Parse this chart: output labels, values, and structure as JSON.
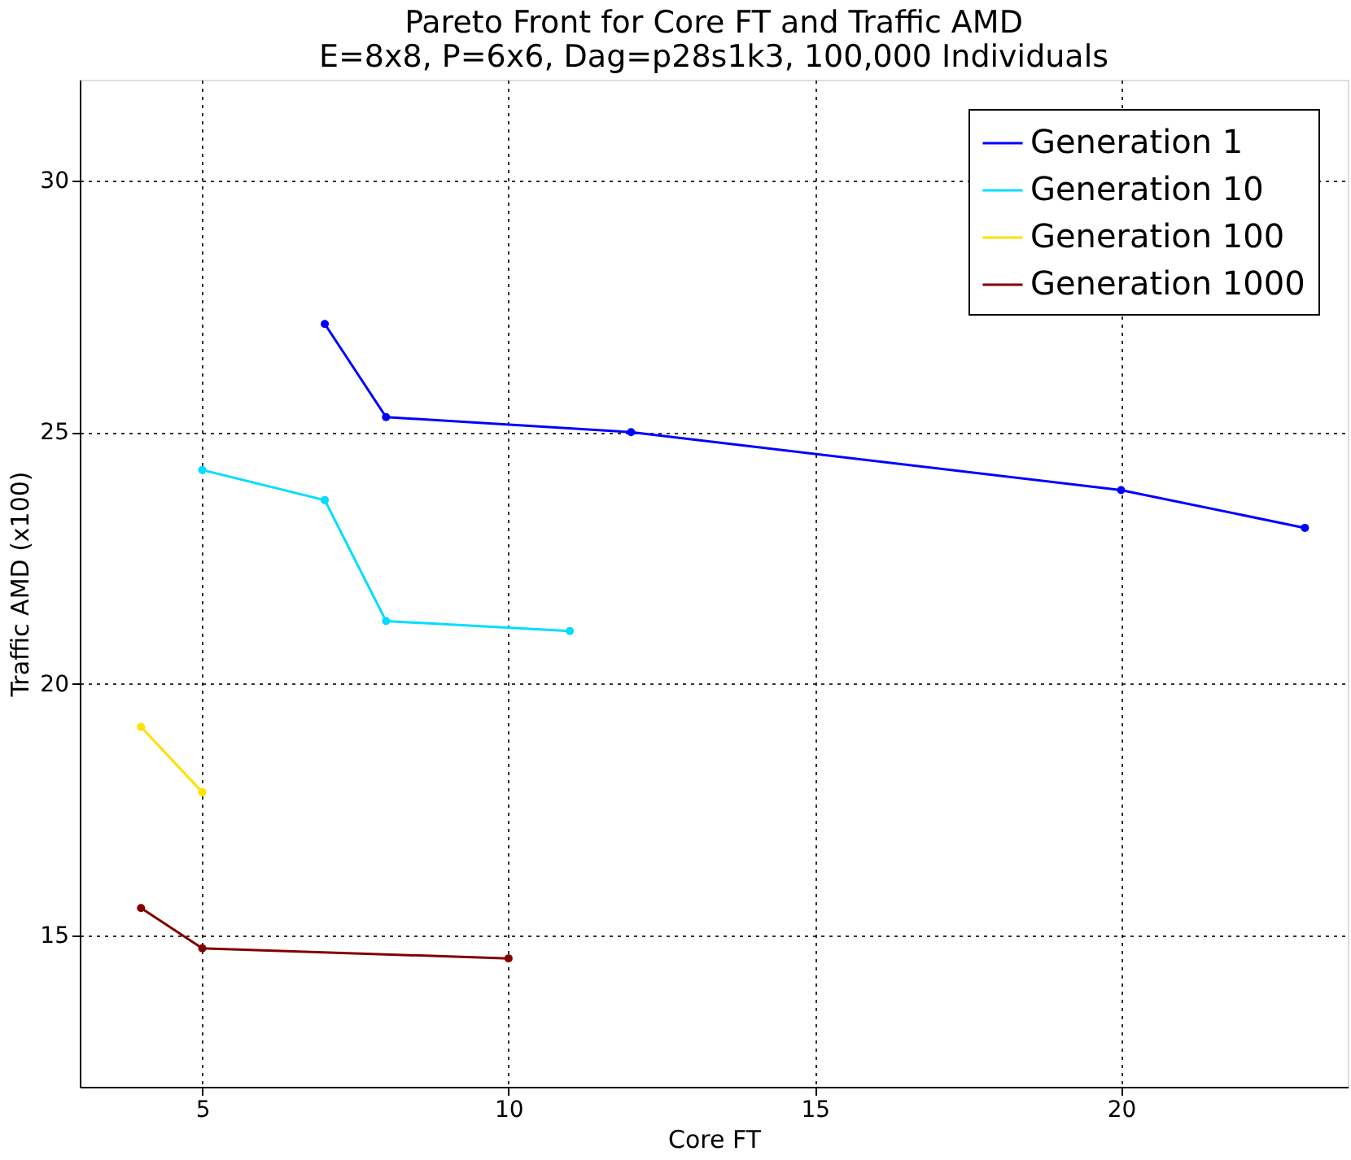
{
  "chart_data": {
    "type": "line",
    "title": "Pareto Front for Core FT and Traffic AMD\nE=8x8, P=6x6, Dag=p28s1k3, 100,000 Individuals",
    "xlabel": "Core FT",
    "ylabel": "Traffic AMD (x100)",
    "xlim": [
      3,
      23.7
    ],
    "xticks": [
      5,
      10,
      15,
      20
    ],
    "ylim": [
      12,
      32
    ],
    "yticks": [
      15,
      20,
      25,
      30
    ],
    "grid": true,
    "legend": "top right",
    "marker": "circle",
    "line_style": "solid",
    "series": [
      {
        "name": "Generation 1",
        "color": "#0000ff",
        "x": [
          7,
          8,
          12,
          20,
          23
        ],
        "values": [
          27.15,
          25.3,
          25.0,
          23.85,
          23.1
        ]
      },
      {
        "name": "Generation 10",
        "color": "#00ddff",
        "x": [
          5,
          7,
          8,
          11
        ],
        "values": [
          24.25,
          23.65,
          21.25,
          21.05
        ]
      },
      {
        "name": "Generation 100",
        "color": "#ffe000",
        "x": [
          4,
          5
        ],
        "values": [
          19.15,
          17.85
        ]
      },
      {
        "name": "Generation 1000",
        "color": "#800000",
        "x": [
          4,
          5,
          10
        ],
        "values": [
          15.55,
          14.75,
          14.55
        ]
      }
    ]
  }
}
